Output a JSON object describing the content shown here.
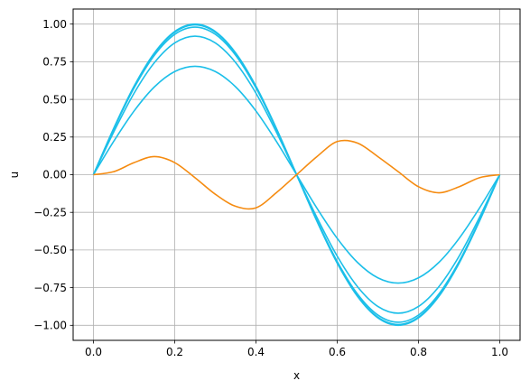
{
  "chart_data": {
    "type": "line",
    "title": "",
    "xlabel": "x",
    "ylabel": "u",
    "xlim": [
      -0.05,
      1.05
    ],
    "ylim": [
      -1.1,
      1.1
    ],
    "xticks": [
      0.0,
      0.2,
      0.4,
      0.6,
      0.8,
      1.0
    ],
    "xtick_labels": [
      "0.0",
      "0.2",
      "0.4",
      "0.6",
      "0.8",
      "1.0"
    ],
    "yticks": [
      1.0,
      0.75,
      0.5,
      0.25,
      0.0,
      -0.25,
      -0.5,
      -0.75,
      -1.0
    ],
    "ytick_labels": [
      "1.00",
      "0.75",
      "0.50",
      "0.25",
      "0.00",
      "−0.25",
      "−0.50",
      "−0.75",
      "−1.00"
    ],
    "grid": true,
    "legend": false,
    "colors": {
      "blue": "#1cbfe9",
      "orange": "#f58b10",
      "grid": "#b0b0b0",
      "axes": "#000000"
    },
    "x": [
      0.0,
      0.05,
      0.1,
      0.15,
      0.2,
      0.25,
      0.3,
      0.35,
      0.4,
      0.45,
      0.5,
      0.55,
      0.6,
      0.65,
      0.7,
      0.75,
      0.8,
      0.85,
      0.9,
      0.95,
      1.0
    ],
    "series": [
      {
        "color": "#1cbfe9",
        "values": [
          0.0,
          0.222,
          0.423,
          0.583,
          0.685,
          0.72,
          0.685,
          0.583,
          0.423,
          0.222,
          0.0,
          -0.222,
          -0.423,
          -0.583,
          -0.685,
          -0.72,
          -0.685,
          -0.583,
          -0.423,
          -0.222,
          0.0
        ]
      },
      {
        "color": "#1cbfe9",
        "values": [
          0.0,
          0.284,
          0.541,
          0.744,
          0.875,
          0.92,
          0.875,
          0.744,
          0.541,
          0.284,
          0.0,
          -0.284,
          -0.541,
          -0.744,
          -0.875,
          -0.92,
          -0.875,
          -0.744,
          -0.541,
          -0.284,
          0.0
        ]
      },
      {
        "color": "#1cbfe9",
        "values": [
          0.0,
          0.303,
          0.576,
          0.793,
          0.932,
          0.98,
          0.932,
          0.793,
          0.576,
          0.303,
          0.0,
          -0.303,
          -0.576,
          -0.793,
          -0.932,
          -0.98,
          -0.932,
          -0.793,
          -0.576,
          -0.303,
          0.0
        ]
      },
      {
        "color": "#1cbfe9",
        "values": [
          0.0,
          0.307,
          0.585,
          0.805,
          0.946,
          0.995,
          0.946,
          0.805,
          0.585,
          0.307,
          0.0,
          -0.307,
          -0.585,
          -0.805,
          -0.946,
          -0.995,
          -0.946,
          -0.805,
          -0.585,
          -0.307,
          0.0
        ]
      },
      {
        "color": "#1cbfe9",
        "values": [
          0.0,
          0.309,
          0.588,
          0.809,
          0.951,
          1.0,
          0.951,
          0.809,
          0.588,
          0.309,
          0.0,
          -0.309,
          -0.588,
          -0.809,
          -0.951,
          -1.0,
          -0.951,
          -0.809,
          -0.588,
          -0.309,
          0.0
        ]
      },
      {
        "color": "#f58b10",
        "values": [
          0.0,
          0.02,
          0.08,
          0.12,
          0.08,
          -0.02,
          -0.13,
          -0.21,
          -0.22,
          -0.12,
          0.0,
          0.12,
          0.22,
          0.21,
          0.12,
          0.02,
          -0.08,
          -0.12,
          -0.08,
          -0.02,
          0.0
        ]
      }
    ]
  }
}
